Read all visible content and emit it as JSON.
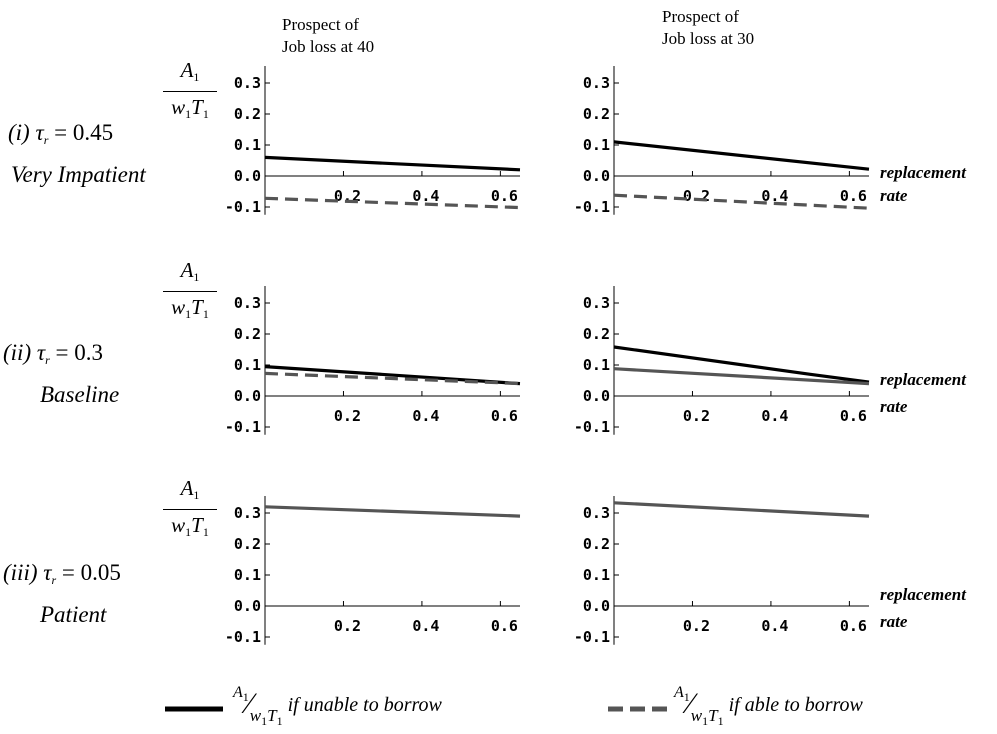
{
  "column_headers": [
    {
      "line1": "Prospect of",
      "line2": "Job loss at 40"
    },
    {
      "line1": "Prospect of",
      "line2": "Job loss at 30"
    }
  ],
  "row_labels": [
    {
      "numeral": "(i)",
      "tau": "τ",
      "sub": "r",
      "eq": " = 0.45",
      "name": "Very Impatient"
    },
    {
      "numeral": "(ii)",
      "tau": "τ",
      "sub": "r",
      "eq": " = 0.3",
      "name": "Baseline"
    },
    {
      "numeral": "(iii)",
      "tau": "τ",
      "sub": "r",
      "eq": " = 0.05",
      "name": "Patient"
    }
  ],
  "y_axis_fraction": {
    "num": "A",
    "num_sub": "1",
    "den_a": "w",
    "den_a_sub": "1",
    "den_b": "T",
    "den_b_sub": "1"
  },
  "x_axis_label": {
    "line1": "replacement",
    "line2": "rate"
  },
  "legend": [
    {
      "style": "solid",
      "text": "if unable to borrow"
    },
    {
      "style": "dashed",
      "text": "if able to borrow"
    }
  ],
  "colors": {
    "unable": "#000000",
    "able": "#555555"
  },
  "chart_data": [
    {
      "type": "line",
      "panel": "(i) job loss at 40",
      "xlim": [
        0,
        0.65
      ],
      "ylim": [
        -0.12,
        0.36
      ],
      "xticks": [
        "0.2",
        "0.4",
        "0.6"
      ],
      "yticks": [
        "0.3",
        "0.2",
        "0.1",
        "0.0",
        "-0.1"
      ],
      "series": [
        {
          "style": "solid",
          "x": [
            0.0,
            0.65
          ],
          "y": [
            0.06,
            0.02
          ]
        },
        {
          "style": "dashed",
          "x": [
            0.0,
            0.65
          ],
          "y": [
            -0.072,
            -0.102
          ]
        }
      ]
    },
    {
      "type": "line",
      "panel": "(i) job loss at 30",
      "xlim": [
        0,
        0.65
      ],
      "ylim": [
        -0.12,
        0.36
      ],
      "xticks": [
        "0.2",
        "0.4",
        "0.6"
      ],
      "yticks": [
        "0.3",
        "0.2",
        "0.1",
        "0.0",
        "-0.1"
      ],
      "series": [
        {
          "style": "solid",
          "x": [
            0.0,
            0.65
          ],
          "y": [
            0.11,
            0.022
          ]
        },
        {
          "style": "dashed",
          "x": [
            0.0,
            0.65
          ],
          "y": [
            -0.062,
            -0.104
          ]
        }
      ]
    },
    {
      "type": "line",
      "panel": "(ii) job loss at 40",
      "xlim": [
        0,
        0.65
      ],
      "ylim": [
        -0.12,
        0.36
      ],
      "xticks": [
        "0.2",
        "0.4",
        "0.6"
      ],
      "yticks": [
        "0.3",
        "0.2",
        "0.1",
        "0.0",
        "-0.1"
      ],
      "series": [
        {
          "style": "solid",
          "x": [
            0.0,
            0.65
          ],
          "y": [
            0.095,
            0.04
          ]
        },
        {
          "style": "dashed",
          "x": [
            0.0,
            0.65
          ],
          "y": [
            0.073,
            0.04
          ]
        }
      ]
    },
    {
      "type": "line",
      "panel": "(ii) job loss at 30",
      "xlim": [
        0,
        0.65
      ],
      "ylim": [
        -0.12,
        0.36
      ],
      "xticks": [
        "0.2",
        "0.4",
        "0.6"
      ],
      "yticks": [
        "0.3",
        "0.2",
        "0.1",
        "0.0",
        "-0.1"
      ],
      "series": [
        {
          "style": "solid",
          "x": [
            0.0,
            0.5,
            0.65
          ],
          "y": [
            0.158,
            0.07,
            0.045
          ]
        },
        {
          "style": "able",
          "x": [
            0.0,
            0.65
          ],
          "y": [
            0.088,
            0.04
          ]
        }
      ]
    },
    {
      "type": "line",
      "panel": "(iii) job loss at 40",
      "xlim": [
        0,
        0.65
      ],
      "ylim": [
        -0.12,
        0.36
      ],
      "xticks": [
        "0.2",
        "0.4",
        "0.6"
      ],
      "yticks": [
        "0.3",
        "0.2",
        "0.1",
        "0.0",
        "-0.1"
      ],
      "series": [
        {
          "style": "able",
          "x": [
            0.0,
            0.65
          ],
          "y": [
            0.32,
            0.29
          ]
        }
      ]
    },
    {
      "type": "line",
      "panel": "(iii) job loss at 30",
      "xlim": [
        0,
        0.65
      ],
      "ylim": [
        -0.12,
        0.36
      ],
      "xticks": [
        "0.2",
        "0.4",
        "0.6"
      ],
      "yticks": [
        "0.3",
        "0.2",
        "0.1",
        "0.0",
        "-0.1"
      ],
      "series": [
        {
          "style": "able",
          "x": [
            0.0,
            0.65
          ],
          "y": [
            0.333,
            0.29
          ]
        }
      ]
    }
  ]
}
